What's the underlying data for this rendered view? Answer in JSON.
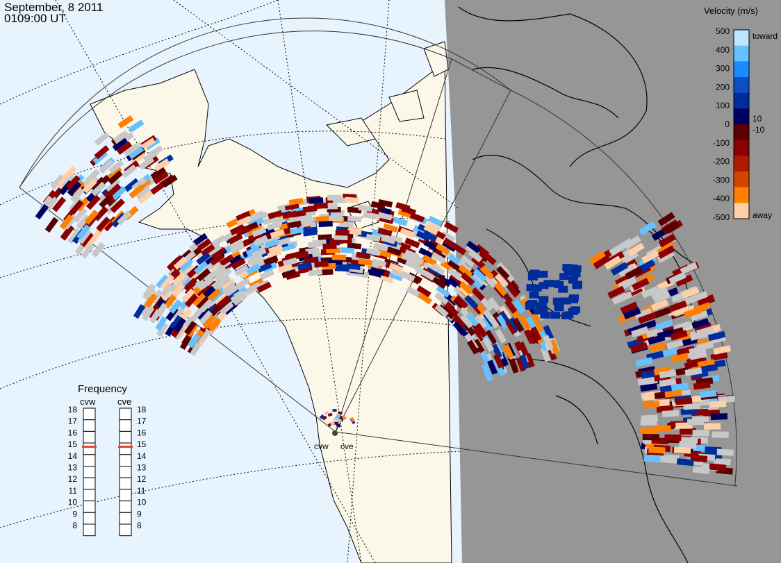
{
  "header": {
    "date": "September, 8 2011",
    "time": "0109:00 UT"
  },
  "colorbar": {
    "title": "Velocity (m/s)",
    "tick_values": [
      "500",
      "400",
      "300",
      "200",
      "100",
      "0",
      "-100",
      "-200",
      "-300",
      "-400",
      "-500"
    ],
    "inner_ticks": [
      "10",
      "-10"
    ],
    "end_labels": {
      "top": "toward",
      "bottom": "away"
    },
    "colors_top_to_bottom": [
      "#bfe6ff",
      "#66c2ff",
      "#1a8cff",
      "#0a4fc4",
      "#002d9c",
      "#000060",
      "#5a0000",
      "#8b0000",
      "#b01a00",
      "#d64500",
      "#ff8000",
      "#ffd0a8"
    ],
    "ground_scatter_color": "#c8c8c8"
  },
  "frequency": {
    "title": "Frequency",
    "radars": [
      {
        "name": "cvw",
        "value": 15
      },
      {
        "name": "cve",
        "value": 15
      }
    ],
    "scale": [
      "18",
      "17",
      "16",
      "15",
      "14",
      "13",
      "12",
      "11",
      "10",
      "9",
      "8"
    ],
    "range": [
      8,
      18
    ]
  },
  "stations": [
    {
      "name": "cvw"
    },
    {
      "name": "cve"
    }
  ],
  "map_colors": {
    "ocean": "#e8f4fd",
    "land": "#fbf8ea",
    "night": "#969696",
    "coast": "#000000"
  }
}
